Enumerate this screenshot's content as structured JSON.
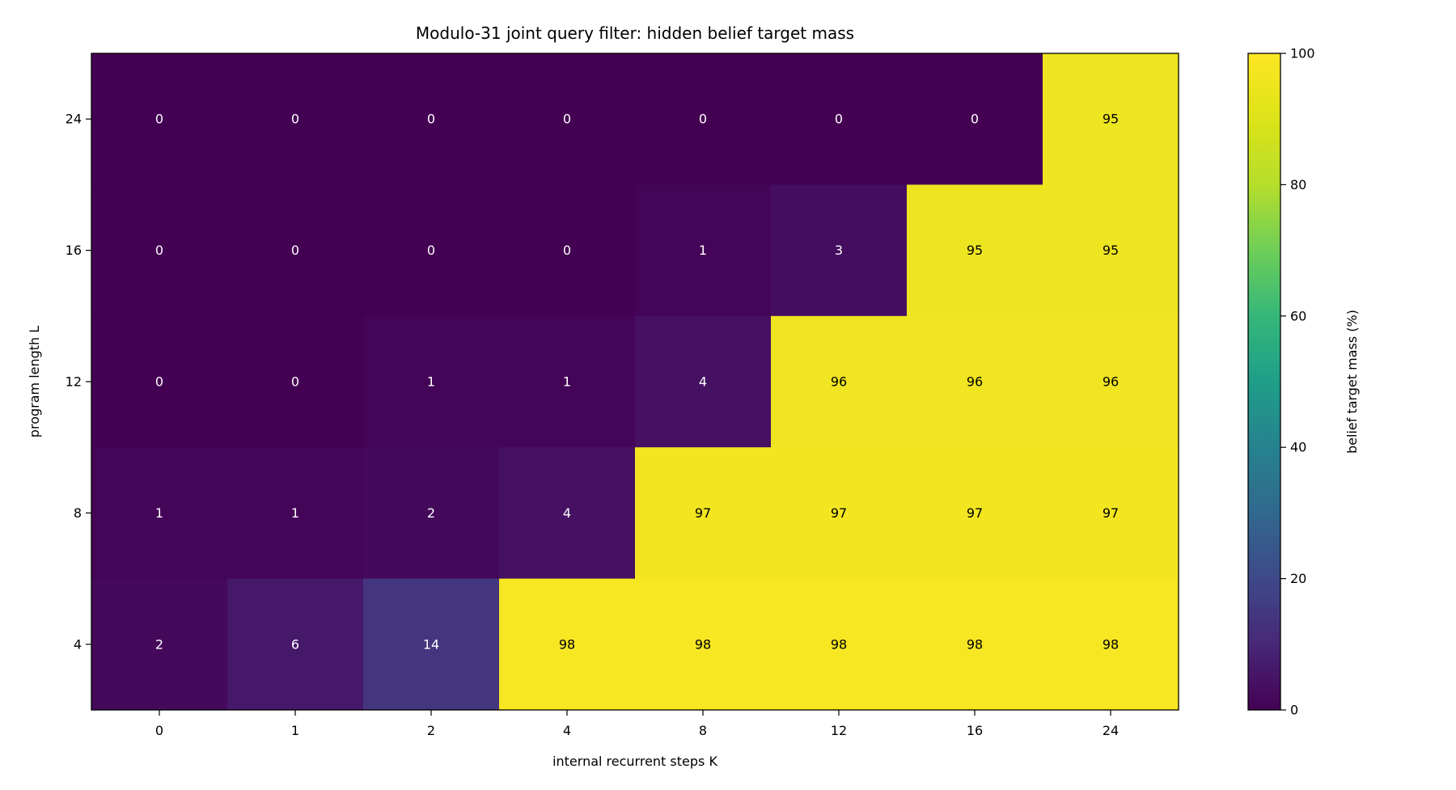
{
  "chart_data": {
    "type": "heatmap",
    "title": "Modulo-31 joint query filter: hidden belief target mass",
    "xlabel": "internal recurrent steps K",
    "ylabel": "program length L",
    "x_categories": [
      "0",
      "1",
      "2",
      "4",
      "8",
      "12",
      "16",
      "24"
    ],
    "y_categories": [
      "24",
      "16",
      "12",
      "8",
      "4"
    ],
    "values": [
      [
        0,
        0,
        0,
        0,
        0,
        0,
        0,
        95
      ],
      [
        0,
        0,
        0,
        0,
        1,
        3,
        95,
        95
      ],
      [
        0,
        0,
        1,
        1,
        4,
        96,
        96,
        96
      ],
      [
        1,
        1,
        2,
        4,
        97,
        97,
        97,
        97
      ],
      [
        2,
        6,
        14,
        98,
        98,
        98,
        98,
        98
      ]
    ],
    "colorbar": {
      "label": "belief target mass (%)",
      "range": [
        0,
        100
      ],
      "ticks": [
        "0",
        "20",
        "40",
        "60",
        "80",
        "100"
      ],
      "colormap": "viridis"
    }
  }
}
